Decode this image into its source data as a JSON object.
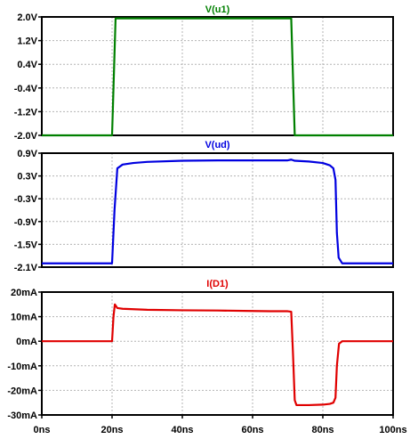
{
  "chart_data": [
    {
      "type": "line",
      "title": "V(u1)",
      "color": "#008000",
      "x_unit": "ns",
      "xlim": [
        0,
        100
      ],
      "ylim": [
        -2.0,
        2.0
      ],
      "y_ticks": [
        2.0,
        1.2,
        0.4,
        -0.4,
        -1.2,
        -2.0
      ],
      "y_tick_labels": [
        "2.0V",
        "1.2V",
        "0.4V",
        "-0.4V",
        "-1.2V",
        "-2.0V"
      ],
      "grid": true,
      "series": [
        {
          "x": [
            0,
            20,
            21,
            71,
            72,
            100
          ],
          "y": [
            -2.0,
            -2.0,
            1.95,
            1.95,
            -2.0,
            -2.0
          ]
        }
      ]
    },
    {
      "type": "line",
      "title": "V(ud)",
      "color": "#0000e0",
      "x_unit": "ns",
      "xlim": [
        0,
        100
      ],
      "ylim": [
        -2.1,
        0.9
      ],
      "y_ticks": [
        0.9,
        0.3,
        -0.3,
        -0.9,
        -1.5,
        -2.1
      ],
      "y_tick_labels": [
        "0.9V",
        "0.3V",
        "-0.3V",
        "-0.9V",
        "-1.5V",
        "-2.1V"
      ],
      "grid": true,
      "series": [
        {
          "x": [
            0,
            20,
            20.7,
            21.5,
            23,
            26,
            30,
            40,
            50,
            60,
            65,
            70,
            71,
            72,
            76,
            80,
            82,
            83,
            83.6,
            84,
            84.5,
            85.5,
            100
          ],
          "y": [
            -2.0,
            -2.0,
            -0.6,
            0.5,
            0.6,
            0.64,
            0.67,
            0.7,
            0.71,
            0.71,
            0.71,
            0.71,
            0.73,
            0.7,
            0.68,
            0.64,
            0.58,
            0.5,
            0.2,
            -1.2,
            -1.85,
            -2.0,
            -2.0
          ]
        }
      ]
    },
    {
      "type": "line",
      "title": "I(D1)",
      "color": "#e00000",
      "x_unit": "ns",
      "xlim": [
        0,
        100
      ],
      "ylim": [
        -30,
        20
      ],
      "y_ticks": [
        20,
        10,
        0,
        -10,
        -20,
        -30
      ],
      "y_tick_labels": [
        "20mA",
        "10mA",
        "0mA",
        "-10mA",
        "-20mA",
        "-30mA"
      ],
      "x_ticks": [
        0,
        20,
        40,
        60,
        80,
        100
      ],
      "x_tick_labels": [
        "0ns",
        "20ns",
        "40ns",
        "60ns",
        "80ns",
        "100ns"
      ],
      "grid": true,
      "series": [
        {
          "x": [
            0,
            20,
            20.4,
            20.8,
            21.5,
            23,
            30,
            40,
            50,
            60,
            65,
            70,
            71,
            71.5,
            72,
            72.5,
            76,
            80,
            82,
            83,
            83.6,
            84,
            84.6,
            85.5,
            100
          ],
          "y": [
            0,
            0,
            10,
            15,
            13.5,
            13.2,
            12.8,
            12.6,
            12.5,
            12.3,
            12.2,
            12.2,
            12.0,
            -5,
            -24,
            -26,
            -26,
            -25.8,
            -25.5,
            -25,
            -23,
            -10,
            -1,
            0,
            0
          ]
        }
      ]
    }
  ]
}
